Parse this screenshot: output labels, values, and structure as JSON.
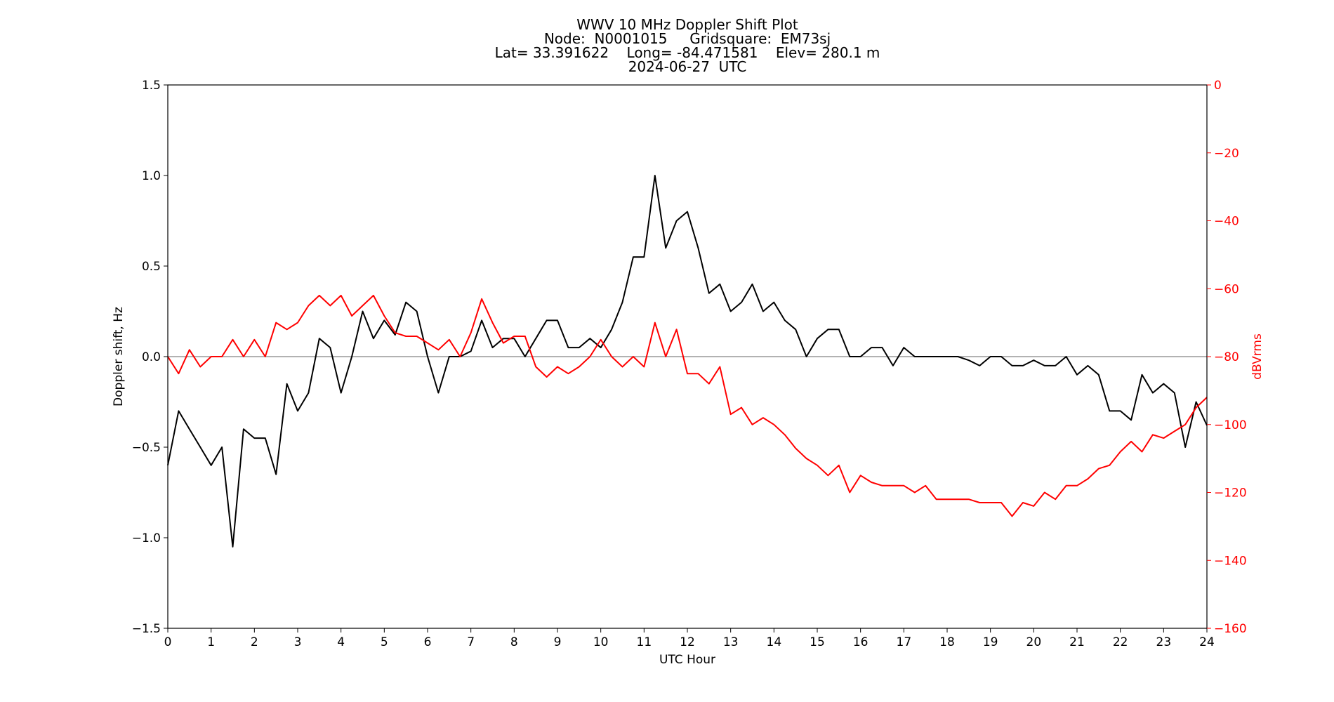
{
  "chart_data": {
    "type": "line",
    "title": [
      "WWV 10 MHz Doppler Shift Plot",
      "Node:  N0001015     Gridsquare:  EM73sj",
      "Lat= 33.391622    Long= -84.471581    Elev= 280.1 m",
      "2024-06-27  UTC"
    ],
    "xlabel": "UTC Hour",
    "ylabel": "Doppler shift, Hz",
    "y2label": "dBVrms",
    "y2color": "#ff0000",
    "x": [
      0,
      0.25,
      0.5,
      0.75,
      1,
      1.25,
      1.5,
      1.75,
      2,
      2.25,
      2.5,
      2.75,
      3,
      3.25,
      3.5,
      3.75,
      4,
      4.25,
      4.5,
      4.75,
      5,
      5.25,
      5.5,
      5.75,
      6,
      6.25,
      6.5,
      6.75,
      7,
      7.25,
      7.5,
      7.75,
      8,
      8.25,
      8.5,
      8.75,
      9,
      9.25,
      9.5,
      9.75,
      10,
      10.25,
      10.5,
      10.75,
      11,
      11.25,
      11.5,
      11.75,
      12,
      12.25,
      12.5,
      12.75,
      13,
      13.25,
      13.5,
      13.75,
      14,
      14.25,
      14.5,
      14.75,
      15,
      15.25,
      15.5,
      15.75,
      16,
      16.25,
      16.5,
      16.75,
      17,
      17.25,
      17.5,
      17.75,
      18,
      18.25,
      18.5,
      18.75,
      19,
      19.25,
      19.5,
      19.75,
      20,
      20.25,
      20.5,
      20.75,
      21,
      21.25,
      21.5,
      21.75,
      22,
      22.25,
      22.5,
      22.75,
      23,
      23.25,
      23.5,
      23.75,
      24
    ],
    "series": [
      {
        "color": "#000000",
        "values": [
          -0.6,
          -0.3,
          -0.4,
          -0.5,
          -0.6,
          -0.5,
          -1.05,
          -0.4,
          -0.45,
          -0.45,
          -0.65,
          -0.15,
          -0.3,
          -0.2,
          0.1,
          0.05,
          -0.2,
          0,
          0.25,
          0.1,
          0.2,
          0.12,
          0.3,
          0.25,
          0,
          -0.2,
          0,
          0,
          0.03,
          0.2,
          0.05,
          0.1,
          0.1,
          0,
          0.1,
          0.2,
          0.2,
          0.05,
          0.05,
          0.1,
          0.05,
          0.15,
          0.3,
          0.55,
          0.55,
          1.0,
          0.6,
          0.75,
          0.8,
          0.6,
          0.35,
          0.4,
          0.25,
          0.3,
          0.4,
          0.25,
          0.3,
          0.2,
          0.15,
          0,
          0.1,
          0.15,
          0.15,
          0,
          0,
          0.05,
          0.05,
          -0.05,
          0.05,
          0,
          0,
          0,
          0,
          0,
          -0.02,
          -0.05,
          0,
          0,
          -0.05,
          -0.05,
          -0.02,
          -0.05,
          -0.05,
          0,
          -0.1,
          -0.05,
          -0.1,
          -0.3,
          -0.3,
          -0.35,
          -0.1,
          -0.2,
          -0.15,
          -0.2,
          -0.5,
          -0.25,
          -0.38
        ]
      },
      {
        "color": "#ff0000",
        "axis": "y2",
        "values": [
          -80,
          -85,
          -78,
          -83,
          -80,
          -80,
          -75,
          -80,
          -75,
          -80,
          -70,
          -72,
          -70,
          -65,
          -62,
          -65,
          -62,
          -68,
          -65,
          -62,
          -68,
          -73,
          -74,
          -74,
          -76,
          -78,
          -75,
          -80,
          -73,
          -63,
          -70,
          -76,
          -74,
          -74,
          -83,
          -86,
          -83,
          -85,
          -83,
          -80,
          -75,
          -80,
          -83,
          -80,
          -83,
          -70,
          -80,
          -72,
          -85,
          -85,
          -88,
          -83,
          -97,
          -95,
          -100,
          -98,
          -100,
          -103,
          -107,
          -110,
          -112,
          -115,
          -112,
          -120,
          -115,
          -117,
          -118,
          -118,
          -118,
          -120,
          -118,
          -122,
          -122,
          -122,
          -122,
          -123,
          -123,
          -123,
          -127,
          -123,
          -124,
          -120,
          -122,
          -118,
          -118,
          -116,
          -113,
          -112,
          -108,
          -105,
          -108,
          -103,
          -104,
          -102,
          -100,
          -95,
          -92
        ]
      }
    ],
    "hline": 0,
    "hline_color": "#999999",
    "xlim": [
      0,
      24
    ],
    "xticks": [
      0,
      1,
      2,
      3,
      4,
      5,
      6,
      7,
      8,
      9,
      10,
      11,
      12,
      13,
      14,
      15,
      16,
      17,
      18,
      19,
      20,
      21,
      22,
      23,
      24
    ],
    "ylim": [
      -1.5,
      1.5
    ],
    "yticks": [
      {
        "value": -1.5,
        "label": "−1.5"
      },
      {
        "value": -1.0,
        "label": "−1.0"
      },
      {
        "value": -0.5,
        "label": "−0.5"
      },
      {
        "value": 0,
        "label": "0.0"
      },
      0.5,
      {
        "value": 1.0,
        "label": "1.0"
      },
      1.5
    ],
    "y2lim": [
      -160,
      0
    ],
    "y2ticks": [
      {
        "value": -160,
        "label": "−160"
      },
      {
        "value": -140,
        "label": "−140"
      },
      {
        "value": -120,
        "label": "−120"
      },
      {
        "value": -100,
        "label": "−100"
      },
      {
        "value": -80,
        "label": "−80"
      },
      {
        "value": -60,
        "label": "−60"
      },
      {
        "value": -40,
        "label": "−40"
      },
      {
        "value": -20,
        "label": "−20"
      },
      0
    ]
  }
}
